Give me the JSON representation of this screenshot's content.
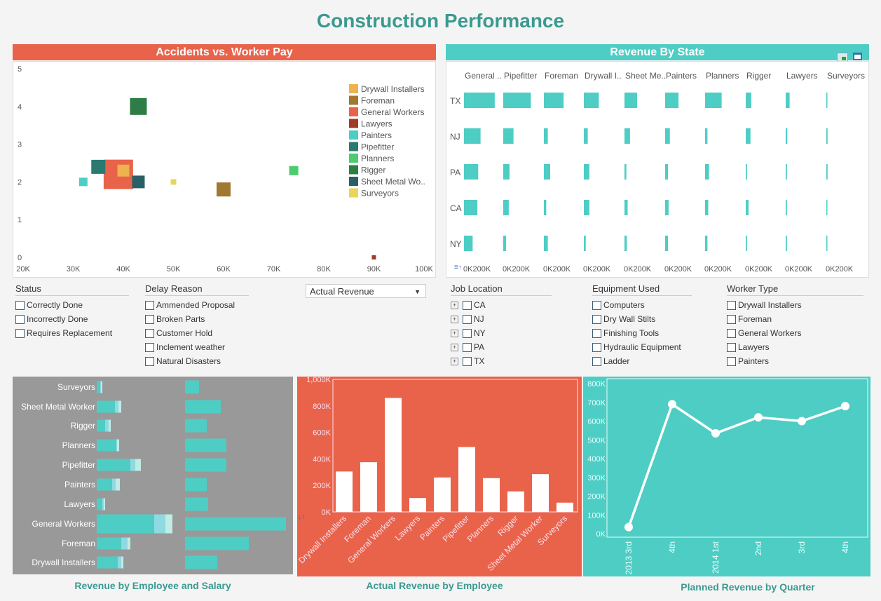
{
  "title": "Construction Performance",
  "colors": {
    "orange": "#e8634a",
    "teal": "#4ecdc4",
    "gray": "#999999",
    "title": "#3a9a90"
  },
  "accidents": {
    "header": "Accidents vs. Worker Pay",
    "chart_data": {
      "type": "scatter",
      "xlim": [
        20,
        100
      ],
      "ylim": [
        0,
        5
      ],
      "xticks": [
        "20K",
        "30K",
        "40K",
        "50K",
        "60K",
        "70K",
        "80K",
        "90K",
        "100K"
      ],
      "yticks": [
        "0",
        "1",
        "2",
        "3",
        "4",
        "5"
      ],
      "legend_position": "right",
      "points": [
        {
          "name": "General Workers",
          "x": 39,
          "y": 2.2,
          "size": 42,
          "color": "#e8634a"
        },
        {
          "name": "Rigger",
          "x": 43,
          "y": 4,
          "size": 24,
          "color": "#2e7d46"
        },
        {
          "name": "Pipefitter",
          "x": 35,
          "y": 2.4,
          "size": 20,
          "color": "#2a7a72"
        },
        {
          "name": "Drywall Installers",
          "x": 40,
          "y": 2.3,
          "size": 17,
          "color": "#eeb24e"
        },
        {
          "name": "Sheet Metal Wo..",
          "x": 43,
          "y": 2,
          "size": 18,
          "color": "#2b5f66"
        },
        {
          "name": "Painters",
          "x": 32,
          "y": 2,
          "size": 12,
          "color": "#4ecdc4"
        },
        {
          "name": "Surveyors",
          "x": 50,
          "y": 2,
          "size": 8,
          "color": "#e8d65a"
        },
        {
          "name": "Foreman",
          "x": 60,
          "y": 1.8,
          "size": 20,
          "color": "#a07830"
        },
        {
          "name": "Planners",
          "x": 74,
          "y": 2.3,
          "size": 13,
          "color": "#4ccc6e"
        },
        {
          "name": "Lawyers",
          "x": 90,
          "y": 0,
          "size": 6,
          "color": "#a03c2c"
        }
      ],
      "legend": [
        {
          "name": "Drywall Installers",
          "color": "#eeb24e"
        },
        {
          "name": "Foreman",
          "color": "#a07830"
        },
        {
          "name": "General Workers",
          "color": "#e8634a"
        },
        {
          "name": "Lawyers",
          "color": "#a03c2c"
        },
        {
          "name": "Painters",
          "color": "#4ecdc4"
        },
        {
          "name": "Pipefitter",
          "color": "#2a7a72"
        },
        {
          "name": "Planners",
          "color": "#4ccc6e"
        },
        {
          "name": "Rigger",
          "color": "#2e7d46"
        },
        {
          "name": "Sheet Metal Wo..",
          "color": "#2b5f66"
        },
        {
          "name": "Surveyors",
          "color": "#e8d65a"
        }
      ]
    }
  },
  "state": {
    "header": "Revenue By State",
    "chart_data": {
      "type": "bar",
      "orientation": "horizontal",
      "small_multiples": true,
      "xlim": [
        0,
        200
      ],
      "tick_label": "0K200K",
      "columns": [
        "General ..",
        "Pipefitter",
        "Foreman",
        "Drywall I..",
        "Sheet Me..",
        "Painters",
        "Planners",
        "Rigger",
        "Lawyers",
        "Surveyors"
      ],
      "rows": [
        "TX",
        "NJ",
        "PA",
        "CA",
        "NY"
      ],
      "values_k": [
        [
          195,
          175,
          125,
          95,
          80,
          85,
          105,
          35,
          25,
          3
        ],
        [
          105,
          65,
          25,
          25,
          35,
          30,
          15,
          30,
          10,
          8
        ],
        [
          90,
          40,
          40,
          35,
          12,
          18,
          25,
          8,
          8,
          8
        ],
        [
          85,
          35,
          15,
          35,
          20,
          22,
          20,
          18,
          8,
          6
        ],
        [
          55,
          18,
          25,
          12,
          15,
          18,
          15,
          8,
          8,
          5
        ]
      ]
    }
  },
  "filters": {
    "status": {
      "title": "Status",
      "items": [
        "Correctly Done",
        "Incorrectly Done",
        "Requires Replacement"
      ]
    },
    "delay": {
      "title": "Delay Reason",
      "items": [
        "Ammended Proposal",
        "Broken Parts",
        "Customer Hold",
        "Inclement weather",
        "Natural Disasters"
      ]
    },
    "measure": {
      "selected": "Actual Revenue"
    },
    "location": {
      "title": "Job Location",
      "items": [
        "CA",
        "NJ",
        "NY",
        "PA",
        "TX"
      ]
    },
    "equipment": {
      "title": "Equipment Used",
      "items": [
        "Computers",
        "Dry Wall Stilts",
        "Finishing Tools",
        "Hydraulic Equipment",
        "Ladder"
      ]
    },
    "worker": {
      "title": "Worker Type",
      "items": [
        "Drywall Installers",
        "Foreman",
        "General Workers",
        "Lawyers",
        "Painters"
      ]
    }
  },
  "salary": {
    "caption": "Revenue by Employee and Salary",
    "chart_data": {
      "type": "bar",
      "orientation": "horizontal",
      "categories": [
        "Surveyors",
        "Sheet Metal Worker",
        "Rigger",
        "Planners",
        "Pipefitter",
        "Painters",
        "Lawyers",
        "General Workers",
        "Foreman",
        "Drywall Installers"
      ],
      "left_segments": [
        [
          5,
          6,
          8
        ],
        [
          26,
          31,
          35
        ],
        [
          12,
          17,
          20
        ],
        [
          28,
          29,
          32
        ],
        [
          48,
          55,
          63
        ],
        [
          22,
          27,
          33
        ],
        [
          8,
          10,
          12
        ],
        [
          82,
          98,
          108
        ],
        [
          35,
          44,
          48
        ],
        [
          30,
          35,
          38
        ]
      ],
      "right_values": [
        20,
        51,
        31,
        59,
        59,
        31,
        33,
        144,
        91,
        46
      ]
    }
  },
  "actual": {
    "caption": "Actual Revenue by Employee",
    "chart_data": {
      "type": "bar",
      "ylim": [
        0,
        1000
      ],
      "yticks": [
        "0K",
        "200K",
        "400K",
        "600K",
        "800K",
        "1,000K"
      ],
      "categories": [
        "Drywall Installers",
        "Foreman",
        "General Workers",
        "Lawyers",
        "Painters",
        "Pipefitter",
        "Planners",
        "Rigger",
        "Sheet Metal Worker",
        "Surveyors"
      ],
      "values": [
        305,
        375,
        860,
        105,
        260,
        490,
        255,
        155,
        285,
        70
      ]
    }
  },
  "planned": {
    "caption": "Planned Revenue by Quarter",
    "chart_data": {
      "type": "line",
      "ylim": [
        0,
        800
      ],
      "yticks": [
        "0K",
        "100K",
        "200K",
        "300K",
        "400K",
        "500K",
        "600K",
        "700K",
        "800K"
      ],
      "categories": [
        "2013 3rd",
        "4th",
        "2014 1st",
        "2nd",
        "3rd",
        "4th"
      ],
      "values": [
        35,
        690,
        535,
        620,
        600,
        680
      ]
    }
  }
}
